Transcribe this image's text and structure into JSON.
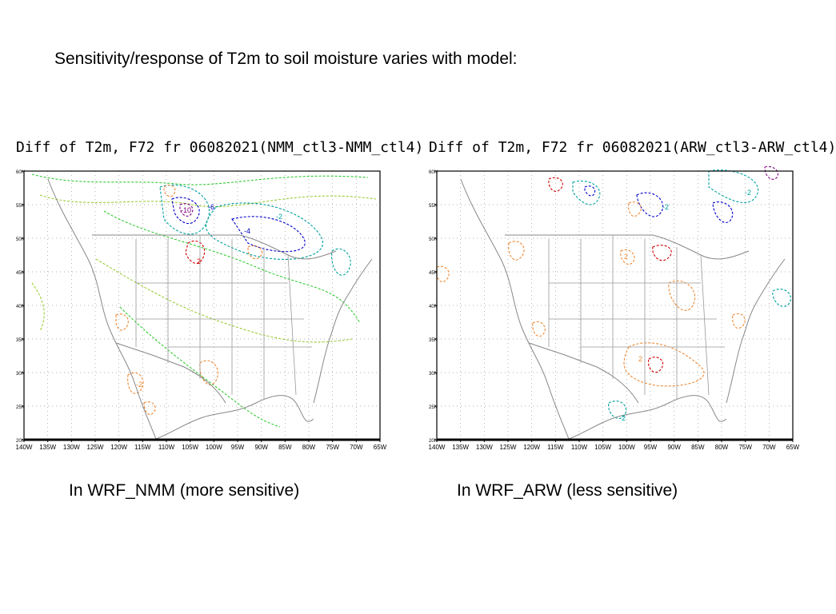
{
  "slide": {
    "title": "Sensitivity/response of T2m to soil moisture varies with model:"
  },
  "panels": [
    {
      "id": "nmm",
      "map_title": "Diff of T2m, F72 fr 06082021(NMM_ctl3-NMM_ctl4)",
      "caption": "In WRF_NMM (more sensitive)"
    },
    {
      "id": "arw",
      "map_title": "Diff of T2m, F72 fr 06082021(ARW_ctl3-ARW_ctl4)",
      "caption": "In WRF_ARW (less sensitive)"
    }
  ],
  "axes": {
    "lat_labels": [
      "60N",
      "55N",
      "50N",
      "45N",
      "40N",
      "35N",
      "30N",
      "25N",
      "20N"
    ],
    "lon_labels": [
      "140W",
      "135W",
      "130W",
      "125W",
      "120W",
      "115W",
      "110W",
      "105W",
      "100W",
      "95W",
      "90W",
      "85W",
      "80W",
      "75W",
      "70W",
      "65W"
    ]
  },
  "contour_labels": {
    "nmm": [
      "-10",
      "-6",
      "-4",
      "-2",
      "2",
      "-2"
    ],
    "arw": [
      "-2",
      "2",
      "-2",
      "2",
      "-2"
    ]
  },
  "colors": {
    "coastline": "#888888",
    "grid": "#999999",
    "cold_strong": "#800080",
    "cold_mid": "#0000cc",
    "cold": "#00a0a0",
    "cool": "#33cc33",
    "cool_light": "#99cc33",
    "warm": "#ee8833",
    "warm_strong": "#cc0000"
  }
}
